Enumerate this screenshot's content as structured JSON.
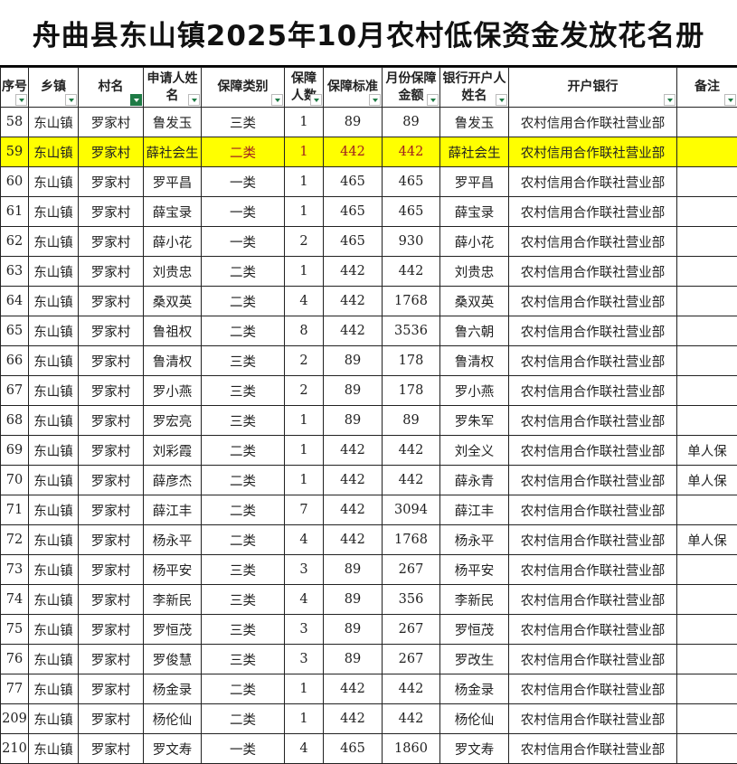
{
  "title": "舟曲县东山镇2025年10月农村低保资金发放花名册",
  "headers": [
    "序号",
    "乡镇",
    "村名",
    "申请人姓名",
    "保障类别",
    "保障人数",
    "保障标准",
    "月份保障金额",
    "银行开户人姓名",
    "开户银行",
    "备注"
  ],
  "filtered_column": "村名",
  "highlight_color": "#ffff00",
  "rows": [
    [
      "58",
      "东山镇",
      "罗家村",
      "鲁发玉",
      "三类",
      "1",
      "89",
      "89",
      "鲁发玉",
      "农村信用合作联社营业部",
      ""
    ],
    [
      "59",
      "东山镇",
      "罗家村",
      "薛社会生",
      "二类",
      "1",
      "442",
      "442",
      "薛社会生",
      "农村信用合作联社营业部",
      ""
    ],
    [
      "60",
      "东山镇",
      "罗家村",
      "罗平昌",
      "一类",
      "1",
      "465",
      "465",
      "罗平昌",
      "农村信用合作联社营业部",
      ""
    ],
    [
      "61",
      "东山镇",
      "罗家村",
      "薛宝录",
      "一类",
      "1",
      "465",
      "465",
      "薛宝录",
      "农村信用合作联社营业部",
      ""
    ],
    [
      "62",
      "东山镇",
      "罗家村",
      "薛小花",
      "一类",
      "2",
      "465",
      "930",
      "薛小花",
      "农村信用合作联社营业部",
      ""
    ],
    [
      "63",
      "东山镇",
      "罗家村",
      "刘贵忠",
      "二类",
      "1",
      "442",
      "442",
      "刘贵忠",
      "农村信用合作联社营业部",
      ""
    ],
    [
      "64",
      "东山镇",
      "罗家村",
      "桑双英",
      "二类",
      "4",
      "442",
      "1768",
      "桑双英",
      "农村信用合作联社营业部",
      ""
    ],
    [
      "65",
      "东山镇",
      "罗家村",
      "鲁祖权",
      "二类",
      "8",
      "442",
      "3536",
      "鲁六朝",
      "农村信用合作联社营业部",
      ""
    ],
    [
      "66",
      "东山镇",
      "罗家村",
      "鲁清权",
      "三类",
      "2",
      "89",
      "178",
      "鲁清权",
      "农村信用合作联社营业部",
      ""
    ],
    [
      "67",
      "东山镇",
      "罗家村",
      "罗小燕",
      "三类",
      "2",
      "89",
      "178",
      "罗小燕",
      "农村信用合作联社营业部",
      ""
    ],
    [
      "68",
      "东山镇",
      "罗家村",
      "罗宏亮",
      "三类",
      "1",
      "89",
      "89",
      "罗朱军",
      "农村信用合作联社营业部",
      ""
    ],
    [
      "69",
      "东山镇",
      "罗家村",
      "刘彩霞",
      "二类",
      "1",
      "442",
      "442",
      "刘全义",
      "农村信用合作联社营业部",
      "单人保"
    ],
    [
      "70",
      "东山镇",
      "罗家村",
      "薛彦杰",
      "二类",
      "1",
      "442",
      "442",
      "薛永青",
      "农村信用合作联社营业部",
      "单人保"
    ],
    [
      "71",
      "东山镇",
      "罗家村",
      "薛江丰",
      "二类",
      "7",
      "442",
      "3094",
      "薛江丰",
      "农村信用合作联社营业部",
      ""
    ],
    [
      "72",
      "东山镇",
      "罗家村",
      "杨永平",
      "二类",
      "4",
      "442",
      "1768",
      "杨永平",
      "农村信用合作联社营业部",
      "单人保"
    ],
    [
      "73",
      "东山镇",
      "罗家村",
      "杨平安",
      "三类",
      "3",
      "89",
      "267",
      "杨平安",
      "农村信用合作联社营业部",
      ""
    ],
    [
      "74",
      "东山镇",
      "罗家村",
      "李新民",
      "三类",
      "4",
      "89",
      "356",
      "李新民",
      "农村信用合作联社营业部",
      ""
    ],
    [
      "75",
      "东山镇",
      "罗家村",
      "罗恒茂",
      "三类",
      "3",
      "89",
      "267",
      "罗恒茂",
      "农村信用合作联社营业部",
      ""
    ],
    [
      "76",
      "东山镇",
      "罗家村",
      "罗俊慧",
      "三类",
      "3",
      "89",
      "267",
      "罗改生",
      "农村信用合作联社营业部",
      ""
    ],
    [
      "77",
      "东山镇",
      "罗家村",
      "杨金录",
      "二类",
      "1",
      "442",
      "442",
      "杨金录",
      "农村信用合作联社营业部",
      ""
    ],
    [
      "209",
      "东山镇",
      "罗家村",
      "杨伦仙",
      "二类",
      "1",
      "442",
      "442",
      "杨伦仙",
      "农村信用合作联社营业部",
      ""
    ],
    [
      "210",
      "东山镇",
      "罗家村",
      "罗文寿",
      "一类",
      "4",
      "465",
      "1860",
      "罗文寿",
      "农村信用合作联社营业部",
      ""
    ]
  ]
}
